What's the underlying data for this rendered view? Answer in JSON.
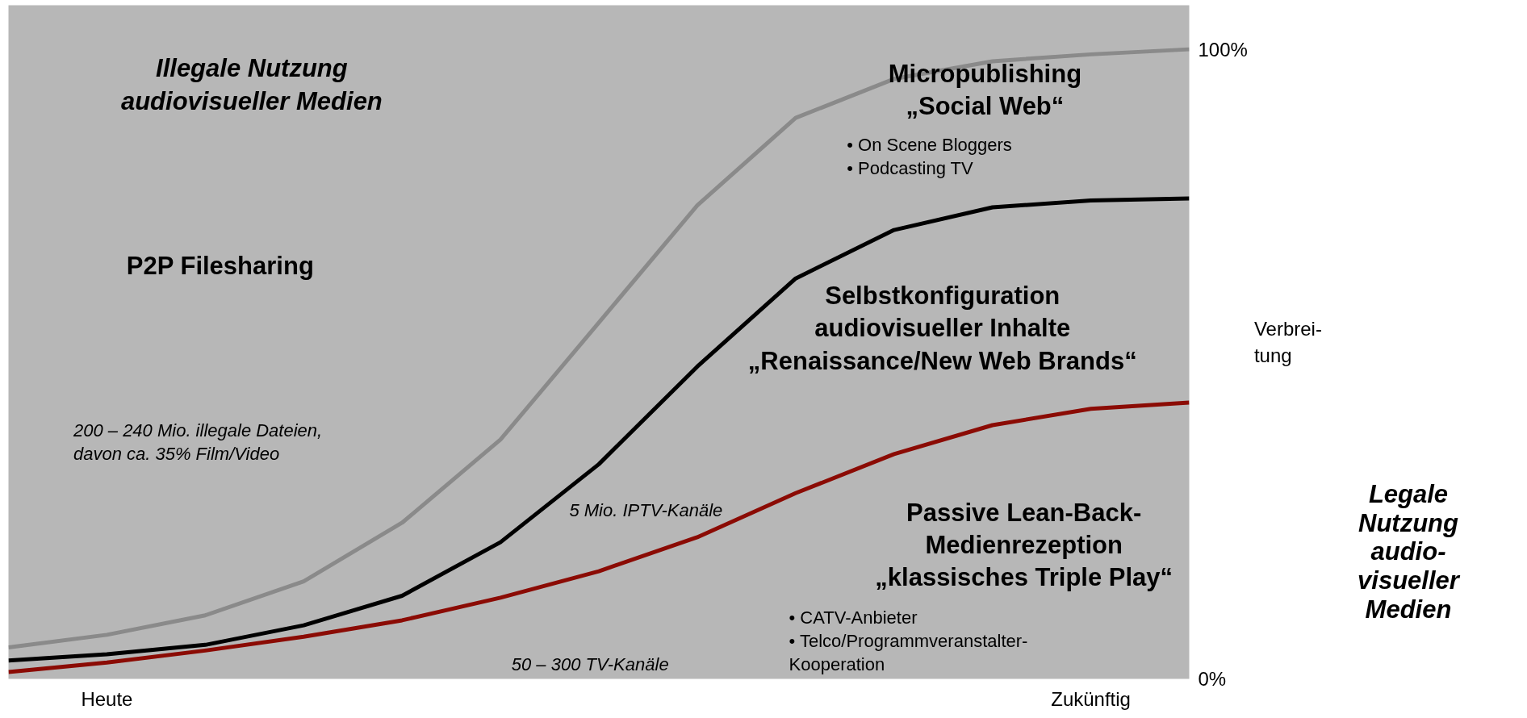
{
  "chart_data": {
    "type": "line",
    "ylabel": "Verbrei-\ntung",
    "ylim": [
      0,
      107
    ],
    "categories": [
      null,
      "Heute",
      null,
      null,
      null,
      null,
      null,
      null,
      null,
      null,
      null,
      "Zukünftig",
      null
    ],
    "yticks": [
      {
        "value": 0,
        "label": "0%"
      },
      {
        "value": 100,
        "label": "100%"
      }
    ],
    "grid": false,
    "marker": "none",
    "line_style": "solid",
    "series": [
      {
        "color": "#8a8a8a",
        "values": [
          5.0,
          7.0,
          10.1,
          15.5,
          24.8,
          38.0,
          56.6,
          75.2,
          89.1,
          95.3,
          98.1,
          99.2,
          100
        ]
      },
      {
        "color": "#000000",
        "values": [
          2.9,
          3.9,
          5.4,
          8.5,
          13.2,
          21.7,
          34.1,
          49.6,
          63.6,
          71.3,
          74.9,
          76.0,
          76.3
        ]
      },
      {
        "color": "#8b0b04",
        "values": [
          1.1,
          2.6,
          4.5,
          6.7,
          9.3,
          12.9,
          17.1,
          22.5,
          29.5,
          35.7,
          40.3,
          42.9,
          43.9
        ]
      }
    ],
    "annotations": [
      "Illegale Nutzung\naudiovisueller Medien",
      "P2P Filesharing",
      "200 – 240 Mio. illegale Dateien,\n    davon ca. 35% Film/Video",
      "Micropublishing\n„Social Web“",
      "• On Scene Bloggers\n• Podcasting TV",
      "Selbstkonfiguration\naudiovisueller Inhalte\n„Renaissance/New Web Brands“",
      "5 Mio. IPTV-Kanäle",
      "Passive Lean-Back-\nMedienrezeption\n„klassisches Triple Play“",
      "• CATV-Anbieter\n• Telco/Programmveranstalter-\n   Kooperation",
      "50 – 300 TV-Kanäle",
      "Legale\nNutzung\naudio-\nvisueller\nMedien"
    ]
  }
}
